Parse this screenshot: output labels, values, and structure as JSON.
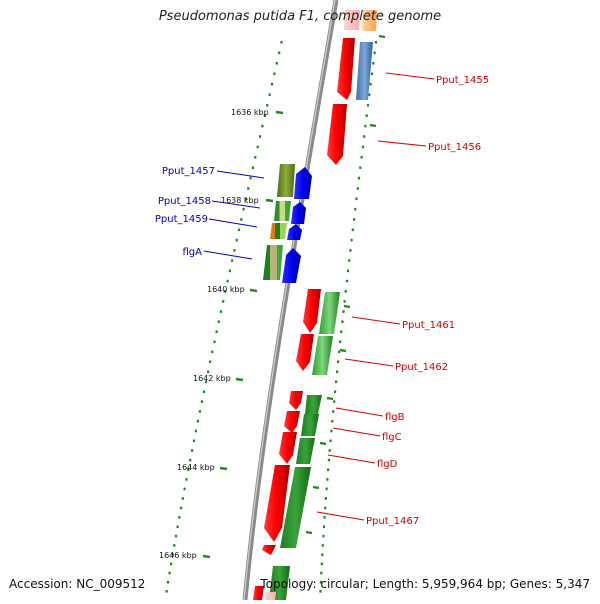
{
  "title": "Pseudomonas putida F1, complete genome",
  "footer": {
    "accession": "Accession: NC_009512",
    "summary": "Topology: circular; Length: 5,959,964 bp; Genes: 5,347"
  },
  "colors": {
    "backbone": "#8a8a8a",
    "tick": "#1c8a1c",
    "forward_label": "#d40000",
    "reverse_label": "#0000b4",
    "leader_line_forward": "#dd0000",
    "leader_line_reverse": "#0000c8"
  },
  "ticks": [
    {
      "kbp": 1636,
      "label": "1636 kbp"
    },
    {
      "kbp": 1638,
      "label": "1638 kbp"
    },
    {
      "kbp": 1640,
      "label": "1640 kbp"
    },
    {
      "kbp": 1642,
      "label": "1642 kbp"
    },
    {
      "kbp": 1644,
      "label": "1644 kbp"
    },
    {
      "kbp": 1646,
      "label": "1646 kbp"
    }
  ],
  "genes": [
    {
      "name": "Pput_1455",
      "strand": "+"
    },
    {
      "name": "Pput_1456",
      "strand": "+"
    },
    {
      "name": "Pput_1457",
      "strand": "-"
    },
    {
      "name": "Pput_1458",
      "strand": "-"
    },
    {
      "name": "Pput_1459",
      "strand": "-"
    },
    {
      "name": "flgA",
      "strand": "-"
    },
    {
      "name": "Pput_1461",
      "strand": "+"
    },
    {
      "name": "Pput_1462",
      "strand": "+"
    },
    {
      "name": "flgB",
      "strand": "+"
    },
    {
      "name": "flgC",
      "strand": "+"
    },
    {
      "name": "flgD",
      "strand": "+"
    },
    {
      "name": "Pput_1467",
      "strand": "+"
    }
  ]
}
